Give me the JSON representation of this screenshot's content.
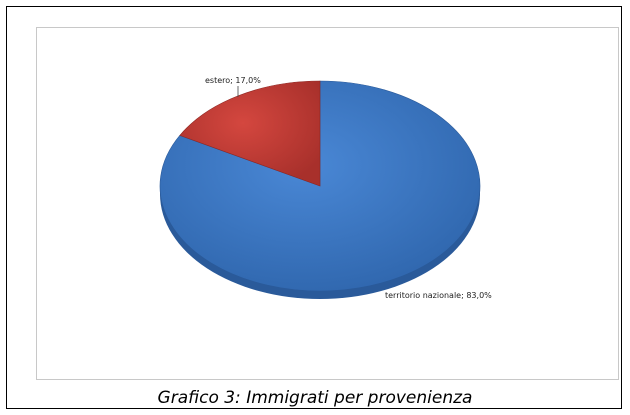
{
  "caption": "Grafico 3: Immigrati per provenienza",
  "chart_data": {
    "type": "pie",
    "slices": [
      {
        "label": "territorio nazionale",
        "value": 83.0,
        "data_label": "territorio nazionale; 83,0%",
        "color": "#3d78c4",
        "edge": "#2a5a9a"
      },
      {
        "label": "estero",
        "value": 17.0,
        "data_label": "estero; 17,0%",
        "color": "#c73a34",
        "edge": "#8e2622"
      }
    ],
    "style": "3d-tilted"
  }
}
